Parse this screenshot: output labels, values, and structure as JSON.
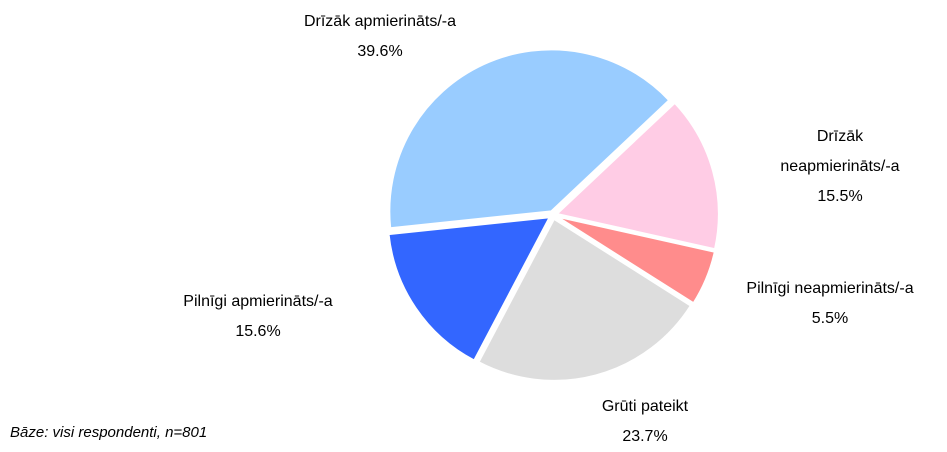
{
  "chart_data": {
    "type": "pie",
    "categories": [
      "Drīzāk apmierināts/-a",
      "Drīzāk neapmierināts/-a",
      "Pilnīgi neapmierināts/-a",
      "Grūti pateikt",
      "Pilnīgi apmierināts/-a"
    ],
    "values": [
      39.6,
      15.5,
      5.5,
      23.7,
      15.6
    ],
    "value_labels": [
      "39.6%",
      "15.5%",
      "5.5%",
      "23.7%",
      "15.6%"
    ],
    "colors": [
      "#99ccff",
      "#ffcce5",
      "#ff8c8c",
      "#dddddd",
      "#3366ff"
    ],
    "footnote": "Bāze: visi respondenti, n=801"
  }
}
